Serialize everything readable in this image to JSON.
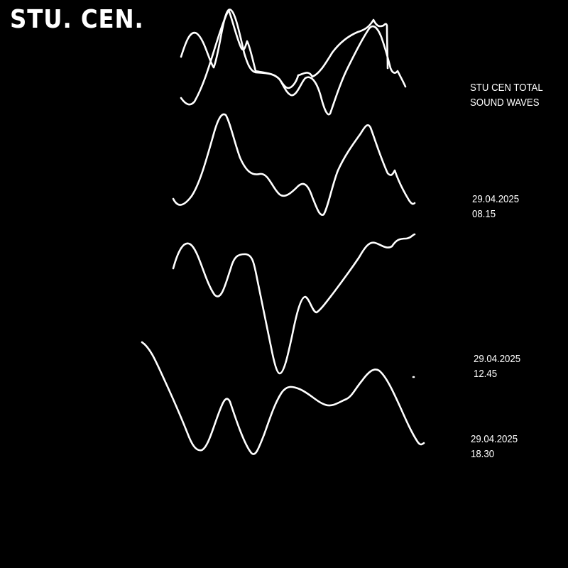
{
  "brand": {
    "logo_text": "STU. CEN."
  },
  "title": {
    "line1": "STU CEN TOTAL",
    "line2": "SOUND WAVES"
  },
  "recordings": [
    {
      "date": "29.04.2025",
      "time": "08.15"
    },
    {
      "date": "29.04.2025",
      "time": "12.45"
    },
    {
      "date": "29.04.2025",
      "time": "18.30"
    }
  ],
  "colors": {
    "background": "#000000",
    "foreground": "#ffffff"
  }
}
